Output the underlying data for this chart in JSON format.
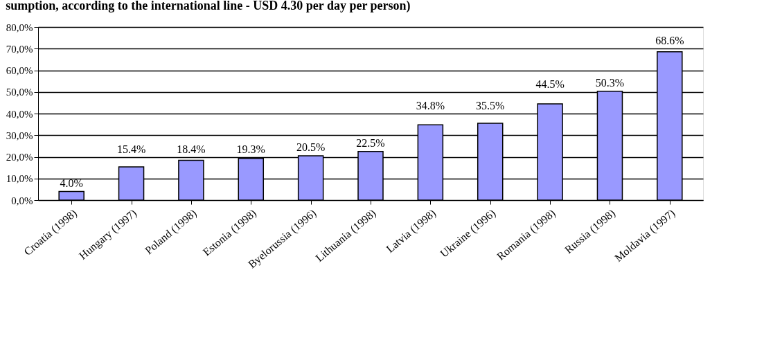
{
  "chart_data": {
    "type": "bar",
    "title": "sumption, according to the international line - USD 4.30 per day per person)",
    "categories": [
      "Croatia (1998)",
      "Hungary (1997)",
      "Poland (1998)",
      "Estonia (1998)",
      "Byelorussia (1996)",
      "Lithuania (1998)",
      "Latvia (1998)",
      "Ukraine (1996)",
      "Romania (1998)",
      "Russia (1998)",
      "Moldavia (1997)"
    ],
    "values": [
      4.0,
      15.4,
      18.4,
      19.3,
      20.5,
      22.5,
      34.8,
      35.5,
      44.5,
      50.3,
      68.6
    ],
    "value_labels": [
      "4.0%",
      "15.4%",
      "18.4%",
      "19.3%",
      "20.5%",
      "22.5%",
      "34.8%",
      "35.5%",
      "44.5%",
      "50.3%",
      "68.6%"
    ],
    "color": "#9999ff",
    "ylim": [
      0,
      80
    ],
    "yticks": [
      {
        "value": 0,
        "label": "0,0%"
      },
      {
        "value": 10,
        "label": "10,0%"
      },
      {
        "value": 20,
        "label": "20,0%"
      },
      {
        "value": 30,
        "label": "30,0%"
      },
      {
        "value": 40,
        "label": "40,0%"
      },
      {
        "value": 50,
        "label": "50,0%"
      },
      {
        "value": 60,
        "label": "60,0%"
      },
      {
        "value": 70,
        "label": "70,0%"
      },
      {
        "value": 80,
        "label": "80,0%"
      }
    ],
    "grid": "y"
  }
}
